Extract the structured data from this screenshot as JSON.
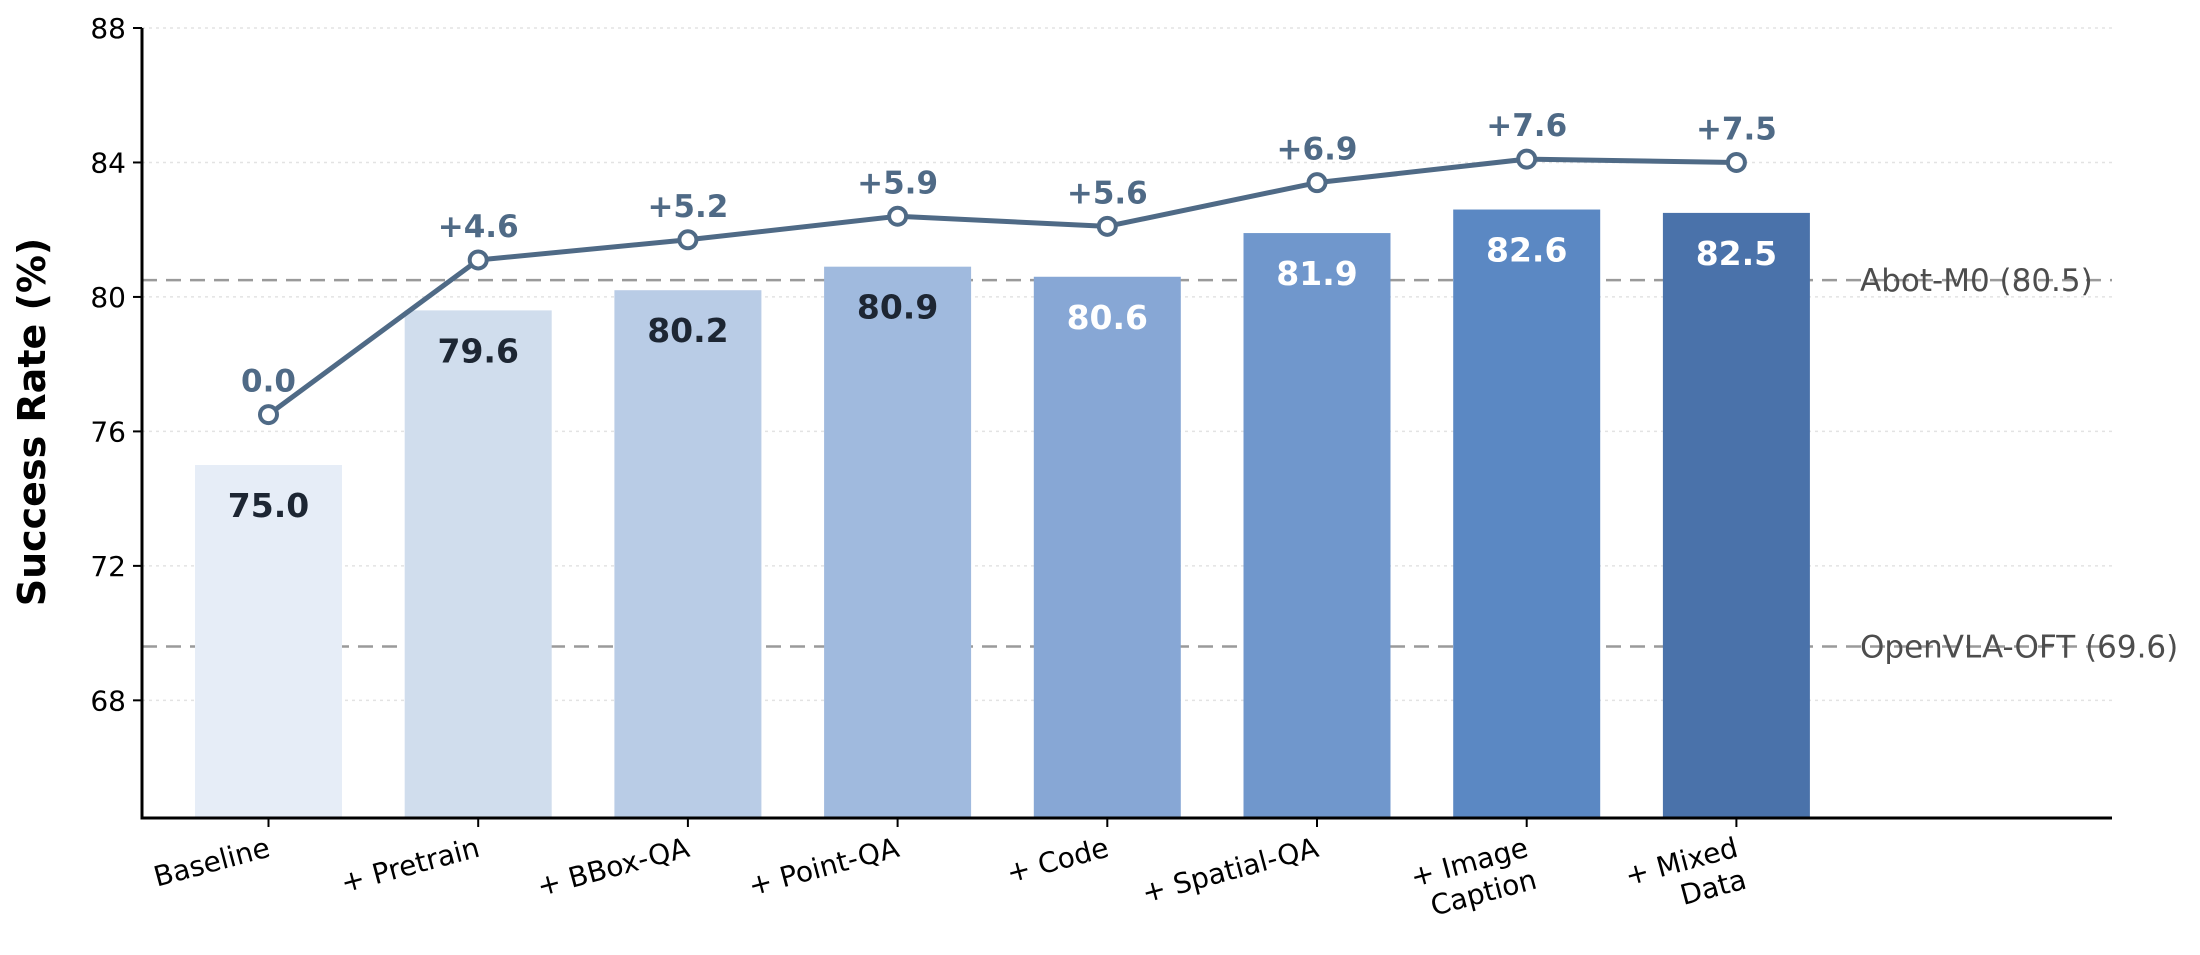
{
  "chart_data": {
    "type": "bar",
    "ylabel": "Success Rate (%)",
    "xlabel": "",
    "ylim": [
      64.5,
      88
    ],
    "yticks": [
      68,
      72,
      76,
      80,
      84,
      88
    ],
    "grid": "horizontal dotted",
    "categories": [
      [
        "Baseline"
      ],
      [
        "+ Pretrain"
      ],
      [
        "+ BBox-QA"
      ],
      [
        "+ Point-QA"
      ],
      [
        "+ Code"
      ],
      [
        "+ Spatial-QA"
      ],
      [
        "+ Image",
        "Caption"
      ],
      [
        "+ Mixed",
        "Data"
      ]
    ],
    "values": [
      75.0,
      79.6,
      80.2,
      80.9,
      80.6,
      81.9,
      82.6,
      82.5
    ],
    "value_labels": [
      "75.0",
      "79.6",
      "80.2",
      "80.9",
      "80.6",
      "81.9",
      "82.6",
      "82.5"
    ],
    "bar_colors": [
      "#e6edf7",
      "#d0dded",
      "#b9cce6",
      "#a0bade",
      "#87a7d5",
      "#7097cc",
      "#5b88c3",
      "#4a72aa"
    ],
    "label_colors": [
      "#1d2633",
      "#1d2633",
      "#1d2633",
      "#1d2633",
      "#ffffff",
      "#ffffff",
      "#ffffff",
      "#ffffff"
    ],
    "improvement_line": {
      "values": [
        76.5,
        81.1,
        81.7,
        82.4,
        82.1,
        83.4,
        84.1,
        84.0
      ],
      "labels": [
        "0.0",
        "+4.6",
        "+5.2",
        "+5.9",
        "+5.6",
        "+6.9",
        "+7.6",
        "+7.5"
      ],
      "color": "#4f6a86"
    },
    "reference_lines": [
      {
        "label": "Abot-M0 (80.5)",
        "value": 80.5
      },
      {
        "label": "OpenVLA-OFT (69.6)",
        "value": 69.6
      }
    ]
  }
}
